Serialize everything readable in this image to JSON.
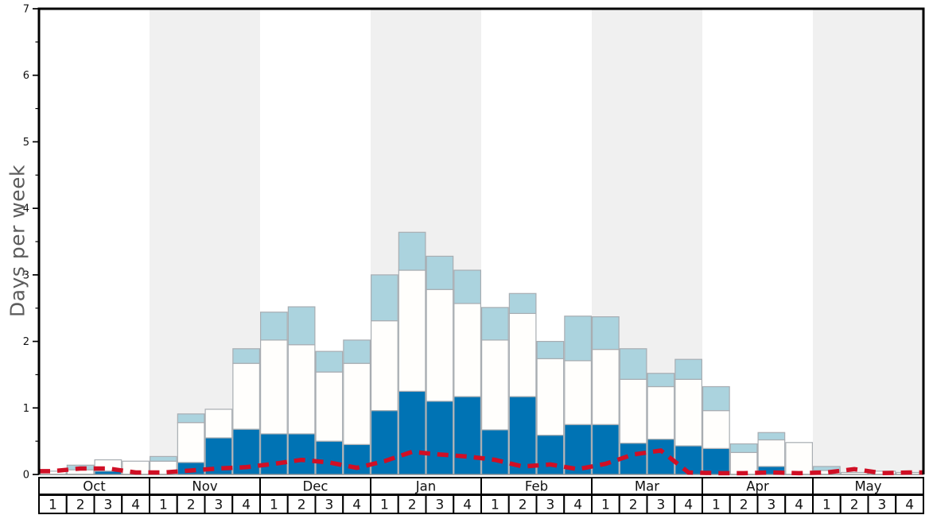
{
  "chart_data": {
    "type": "stacked-bar+line",
    "ylabel": "Days per week",
    "ylim": [
      0,
      7
    ],
    "yticks": [
      0,
      1,
      2,
      3,
      4,
      5,
      6,
      7
    ],
    "minor_tick_step": 0.5,
    "grid": false,
    "months": [
      "Oct",
      "Nov",
      "Dec",
      "Jan",
      "Feb",
      "Mar",
      "Apr",
      "May"
    ],
    "week_labels": [
      "1",
      "2",
      "3",
      "4"
    ],
    "shaded_month_indices": [
      1,
      3,
      5,
      7
    ],
    "series": [
      {
        "name": "dark-blue-bars",
        "color_key": "dark_blue",
        "values": [
          0,
          0,
          0.05,
          0,
          0,
          0.18,
          0.55,
          0.68,
          0.61,
          0.61,
          0.5,
          0.45,
          0.96,
          1.25,
          1.1,
          1.17,
          0.67,
          1.17,
          0.59,
          0.75,
          0.75,
          0.47,
          0.53,
          0.43,
          0.39,
          0,
          0.12,
          0,
          0,
          0,
          0,
          0
        ]
      },
      {
        "name": "white-bars",
        "color_key": "white",
        "values": [
          0.05,
          0.07,
          0.17,
          0.2,
          0.2,
          0.6,
          0.43,
          0.99,
          1.41,
          1.34,
          1.04,
          1.22,
          1.35,
          1.82,
          1.68,
          1.4,
          1.35,
          1.25,
          1.15,
          0.96,
          1.13,
          0.96,
          0.79,
          1.0,
          0.57,
          0.33,
          0.4,
          0.48,
          0.06,
          0.03,
          0.05,
          0.03
        ]
      },
      {
        "name": "light-blue-bars",
        "color_key": "light_blue",
        "values": [
          0,
          0.07,
          0,
          0,
          0.07,
          0.13,
          0,
          0.22,
          0.42,
          0.57,
          0.31,
          0.35,
          0.69,
          0.57,
          0.5,
          0.5,
          0.49,
          0.3,
          0.26,
          0.67,
          0.49,
          0.46,
          0.2,
          0.3,
          0.36,
          0.13,
          0.11,
          0,
          0.06,
          0,
          0,
          0
        ]
      }
    ],
    "line_series": {
      "name": "red-dashed-line",
      "color_key": "line_red",
      "values": [
        0.05,
        0.09,
        0.09,
        0.03,
        0.03,
        0.06,
        0.09,
        0.11,
        0.16,
        0.22,
        0.18,
        0.1,
        0.2,
        0.34,
        0.3,
        0.27,
        0.22,
        0.12,
        0.15,
        0.08,
        0.16,
        0.3,
        0.36,
        0.03,
        0.02,
        0.02,
        0.03,
        0.02,
        0.03,
        0.08,
        0.02,
        0.03
      ]
    },
    "colors": {
      "dark_blue": "#0073b4",
      "white": "#fffefc",
      "light_blue": "#abd3de",
      "line_red": "#d00f25",
      "band": "#f0f0f0",
      "bar_border": "#a8adb2",
      "axis": "#000000",
      "tick_text": "#111111",
      "ylabel_gray": "#5c5c5c",
      "baseline": "#8c8c8c"
    }
  }
}
